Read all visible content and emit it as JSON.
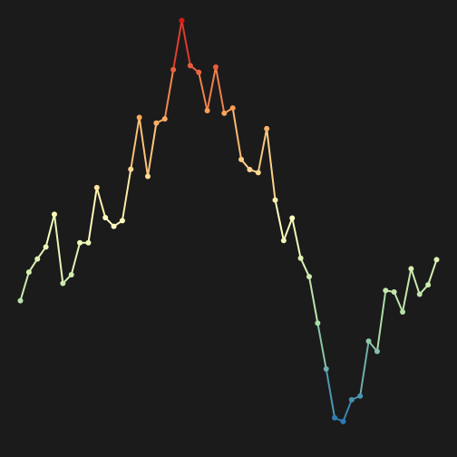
{
  "chart_data": {
    "type": "line",
    "title": "",
    "xlabel": "",
    "ylabel": "",
    "grid": false,
    "legend": "none",
    "background": "#1b1b1b",
    "colormap": [
      "#2c7bb6",
      "#abdda4",
      "#ffffbf",
      "#fdae61",
      "#d7191c"
    ],
    "xlim": [
      0,
      51
    ],
    "ylim": [
      0,
      100
    ],
    "series": [
      {
        "values": [
          35.7,
          43.3,
          46.8,
          50.0,
          58.7,
          40.3,
          42.6,
          51.1,
          51.1,
          65.8,
          57.8,
          55.5,
          57.0,
          70.7,
          84.5,
          68.8,
          83.0,
          84.1,
          97.2,
          110.3,
          98.3,
          96.5,
          86.3,
          97.9,
          85.6,
          87.0,
          73.3,
          70.6,
          69.8,
          81.5,
          62.5,
          51.7,
          57.7,
          47.0,
          42.1,
          29.7,
          17.5,
          4.5,
          3.5,
          9.3,
          10.3,
          24.9,
          22.2,
          38.4,
          38.0,
          32.7,
          44.2,
          37.4,
          39.9,
          46.6
        ]
      }
    ]
  }
}
